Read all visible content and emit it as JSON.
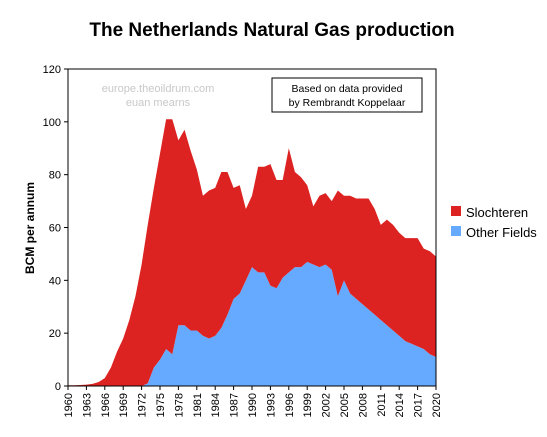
{
  "chart_data": {
    "type": "area",
    "title": "The Netherlands Natural Gas production",
    "ylabel": "BCM per annum",
    "xlabel": "",
    "ylim": [
      0,
      120
    ],
    "yticks": [
      0,
      20,
      40,
      60,
      80,
      100,
      120
    ],
    "xlim": [
      1960,
      2020
    ],
    "xticks": [
      1960,
      1963,
      1966,
      1969,
      1972,
      1975,
      1978,
      1981,
      1984,
      1987,
      1990,
      1993,
      1996,
      1999,
      2002,
      2005,
      2008,
      2011,
      2014,
      2017,
      2020
    ],
    "stacked": true,
    "legend_position": "right",
    "grid": false,
    "watermark": [
      "europe.theoildrum.com",
      "euan mearns"
    ],
    "annotation": [
      "Based on data provided",
      "by Rembrandt Koppelaar"
    ],
    "x": [
      1960,
      1961,
      1962,
      1963,
      1964,
      1965,
      1966,
      1967,
      1968,
      1969,
      1970,
      1971,
      1972,
      1973,
      1974,
      1975,
      1976,
      1977,
      1978,
      1979,
      1980,
      1981,
      1982,
      1983,
      1984,
      1985,
      1986,
      1987,
      1988,
      1989,
      1990,
      1991,
      1992,
      1993,
      1994,
      1995,
      1996,
      1997,
      1998,
      1999,
      2000,
      2001,
      2002,
      2003,
      2004,
      2005,
      2006,
      2007,
      2008,
      2009,
      2010,
      2011,
      2012,
      2013,
      2014,
      2015,
      2016,
      2017,
      2018,
      2019,
      2020
    ],
    "series": [
      {
        "name": "Other Fields",
        "color": "#66aaff",
        "values": [
          0,
          0,
          0,
          0,
          0,
          0,
          0,
          0,
          0,
          0,
          0,
          0,
          0,
          1,
          7,
          10,
          14,
          12,
          23,
          23,
          21,
          21,
          19,
          18,
          19,
          22,
          27,
          33,
          35,
          40,
          45,
          43,
          43,
          38,
          37,
          41,
          43,
          45,
          45,
          47,
          46,
          45,
          46,
          44,
          34,
          40,
          35,
          33,
          31,
          29,
          27,
          25,
          23,
          21,
          19,
          17,
          16,
          15,
          14,
          12,
          11
        ]
      },
      {
        "name": "Slochteren",
        "color": "#dd2222",
        "values": [
          0.3,
          0.3,
          0.4,
          0.5,
          0.8,
          1.5,
          3,
          7,
          13,
          18,
          25,
          34,
          46,
          60,
          68,
          78,
          87,
          89,
          70,
          74,
          68,
          61,
          53,
          56,
          56,
          59,
          54,
          42,
          41,
          27,
          27,
          40,
          40,
          46,
          41,
          37,
          47,
          36,
          34,
          29,
          22,
          27,
          27,
          26,
          40,
          32,
          37,
          38,
          40,
          42,
          40,
          36,
          40,
          40,
          39,
          39,
          40,
          41,
          38,
          39,
          38
        ]
      }
    ]
  }
}
